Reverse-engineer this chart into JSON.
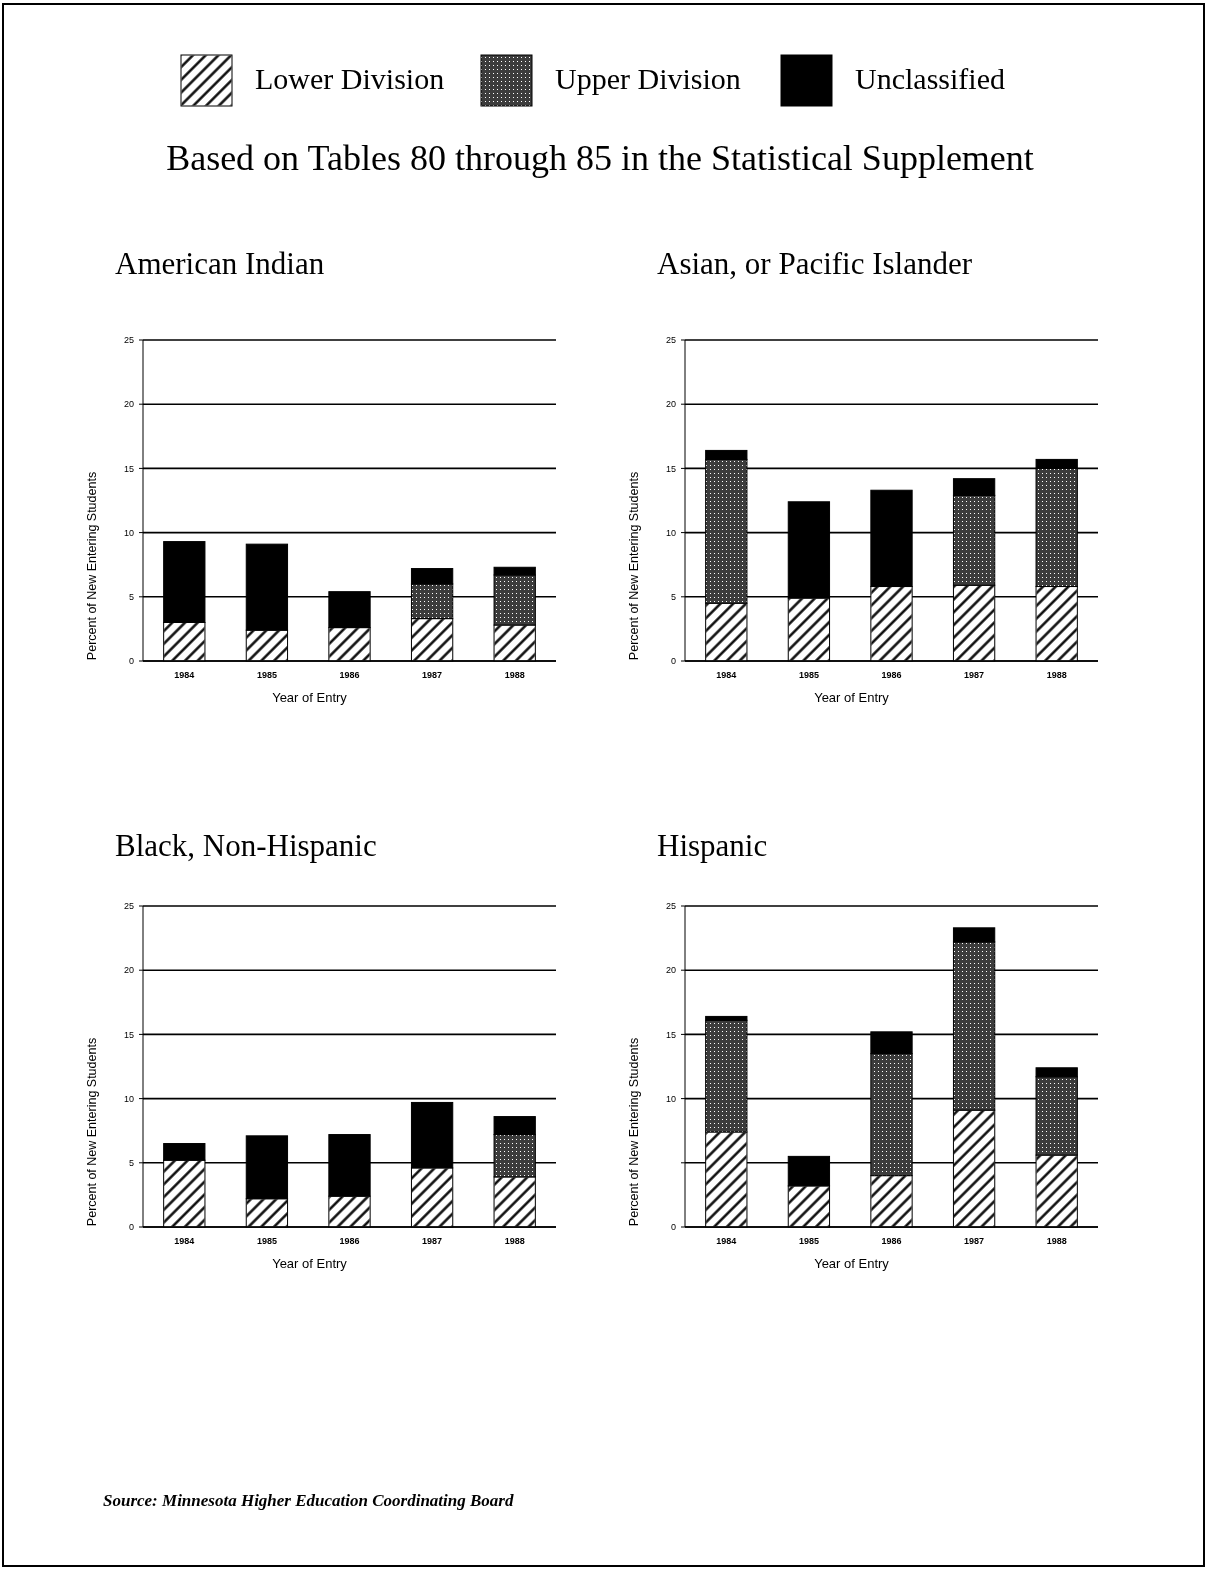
{
  "chart_data": [
    {
      "type": "bar",
      "stacked": true,
      "title": "American Indian",
      "annotations": [
        "Based on Tables 80 through 85 in the Statistical Supplement"
      ],
      "legend": "top",
      "categories": [
        "1984",
        "1985",
        "1986",
        "1987",
        "1988"
      ],
      "series": [
        {
          "name": "Lower Division",
          "color": "#ffffff",
          "values": [
            3.0,
            2.4,
            2.6,
            3.3,
            2.8
          ]
        },
        {
          "name": "Upper Division",
          "color": "#3c3c3c",
          "values": [
            0,
            0,
            0,
            2.7,
            3.9
          ]
        },
        {
          "name": "Unclassified",
          "color": "#000000",
          "values": [
            6.3,
            6.7,
            2.8,
            1.2,
            0.6
          ]
        }
      ],
      "ylim": [
        0,
        25
      ],
      "yticks": [
        0,
        5,
        10,
        15,
        20,
        25
      ],
      "grid": "y",
      "xlabel": "Year of Entry",
      "ylabel": "Percent of New Entering Students"
    },
    {
      "type": "bar",
      "stacked": true,
      "title": "Asian, or Pacific Islander",
      "categories": [
        "1984",
        "1985",
        "1986",
        "1987",
        "1988"
      ],
      "series": [
        {
          "color": "#ffffff",
          "values": [
            4.5,
            4.9,
            5.8,
            5.9,
            5.8
          ]
        },
        {
          "color": "#3c3c3c",
          "values": [
            11.2,
            0,
            0,
            7.0,
            9.2
          ]
        },
        {
          "color": "#000000",
          "values": [
            0.7,
            7.5,
            7.5,
            1.3,
            0.7
          ]
        }
      ],
      "ylim": [
        0,
        25
      ],
      "yticks": [
        0,
        5,
        10,
        15,
        20,
        25
      ],
      "grid": "y",
      "xlabel": "Year of Entry",
      "ylabel": "Percent of New Entering Students"
    },
    {
      "type": "bar",
      "stacked": true,
      "title": "Black, Non-Hispanic",
      "categories": [
        "1984",
        "1985",
        "1986",
        "1987",
        "1988"
      ],
      "series": [
        {
          "color": "#ffffff",
          "values": [
            5.2,
            2.2,
            2.4,
            4.6,
            3.9
          ]
        },
        {
          "color": "#3c3c3c",
          "values": [
            0,
            0,
            0,
            0,
            3.3
          ]
        },
        {
          "color": "#000000",
          "values": [
            1.3,
            4.9,
            4.8,
            5.1,
            1.4
          ]
        }
      ],
      "ylim": [
        0,
        25
      ],
      "yticks": [
        0,
        5,
        10,
        15,
        20,
        25
      ],
      "grid": "y",
      "xlabel": "Year of Entry",
      "ylabel": "Percent of New Entering Students"
    },
    {
      "type": "bar",
      "stacked": true,
      "title": "Hispanic",
      "annotations": [
        "Source:  Minnesota Higher Education Coordinating Board"
      ],
      "categories": [
        "1984",
        "1985",
        "1986",
        "1987",
        "1988"
      ],
      "series": [
        {
          "color": "#ffffff",
          "values": [
            7.4,
            3.2,
            4.0,
            9.1,
            5.6
          ]
        },
        {
          "color": "#3c3c3c",
          "values": [
            8.7,
            0,
            9.5,
            13.1,
            6.1
          ]
        },
        {
          "color": "#000000",
          "values": [
            0.3,
            2.3,
            1.7,
            1.1,
            0.7
          ]
        }
      ],
      "ylim": [
        0,
        25
      ],
      "yticks": [
        0,
        {
          "value": 5,
          "label": null
        },
        10,
        15,
        20,
        25
      ],
      "grid": "y",
      "xlabel": "Year of Entry",
      "ylabel": "Percent of New Entering Students"
    }
  ]
}
